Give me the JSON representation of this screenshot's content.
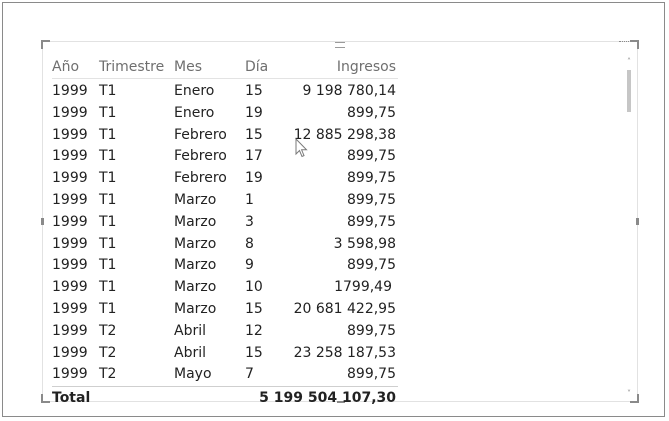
{
  "table": {
    "headers": {
      "ano": "Año",
      "trimestre": "Trimestre",
      "mes": "Mes",
      "dia": "Día",
      "ingresos": "Ingresos"
    },
    "rows": [
      {
        "ano": "1999",
        "trimestre": "T1",
        "mes": "Enero",
        "dia": "15",
        "ingresos": "9 198 780,14"
      },
      {
        "ano": "1999",
        "trimestre": "T1",
        "mes": "Enero",
        "dia": "19",
        "ingresos": "899,75"
      },
      {
        "ano": "1999",
        "trimestre": "T1",
        "mes": "Febrero",
        "dia": "15",
        "ingresos": "12 885 298,38"
      },
      {
        "ano": "1999",
        "trimestre": "T1",
        "mes": "Febrero",
        "dia": "17",
        "ingresos": "899,75"
      },
      {
        "ano": "1999",
        "trimestre": "T1",
        "mes": "Febrero",
        "dia": "19",
        "ingresos": "899,75"
      },
      {
        "ano": "1999",
        "trimestre": "T1",
        "mes": "Marzo",
        "dia": "1",
        "ingresos": "899,75"
      },
      {
        "ano": "1999",
        "trimestre": "T1",
        "mes": "Marzo",
        "dia": "3",
        "ingresos": "899,75"
      },
      {
        "ano": "1999",
        "trimestre": "T1",
        "mes": "Marzo",
        "dia": "8",
        "ingresos": "3 598,98"
      },
      {
        "ano": "1999",
        "trimestre": "T1",
        "mes": "Marzo",
        "dia": "9",
        "ingresos": "899,75"
      },
      {
        "ano": "1999",
        "trimestre": "T1",
        "mes": "Marzo",
        "dia": "10",
        "ingresos": "1799,49"
      },
      {
        "ano": "1999",
        "trimestre": "T1",
        "mes": "Marzo",
        "dia": "15",
        "ingresos": "20 681 422,95"
      },
      {
        "ano": "1999",
        "trimestre": "T2",
        "mes": "Abril",
        "dia": "12",
        "ingresos": "899,75"
      },
      {
        "ano": "1999",
        "trimestre": "T2",
        "mes": "Abril",
        "dia": "15",
        "ingresos": "23 258 187,53"
      },
      {
        "ano": "1999",
        "trimestre": "T2",
        "mes": "Mayo",
        "dia": "7",
        "ingresos": "899,75"
      }
    ],
    "total": {
      "label": "Total",
      "ingresos": "5 199 504 107,30"
    }
  },
  "scrollbar": {
    "up_icon": "chevron-up-icon",
    "down_icon": "chevron-down-icon"
  },
  "icons": {
    "cursor": "mouse-pointer-icon",
    "grip": "drag-grip-icon",
    "focus": "focus-mode-icon"
  },
  "colors": {
    "header_text": "#6f6f6f",
    "body_text": "#222222",
    "frame_border": "#8a8a8a",
    "scroll_thumb": "#c6c6c6"
  }
}
